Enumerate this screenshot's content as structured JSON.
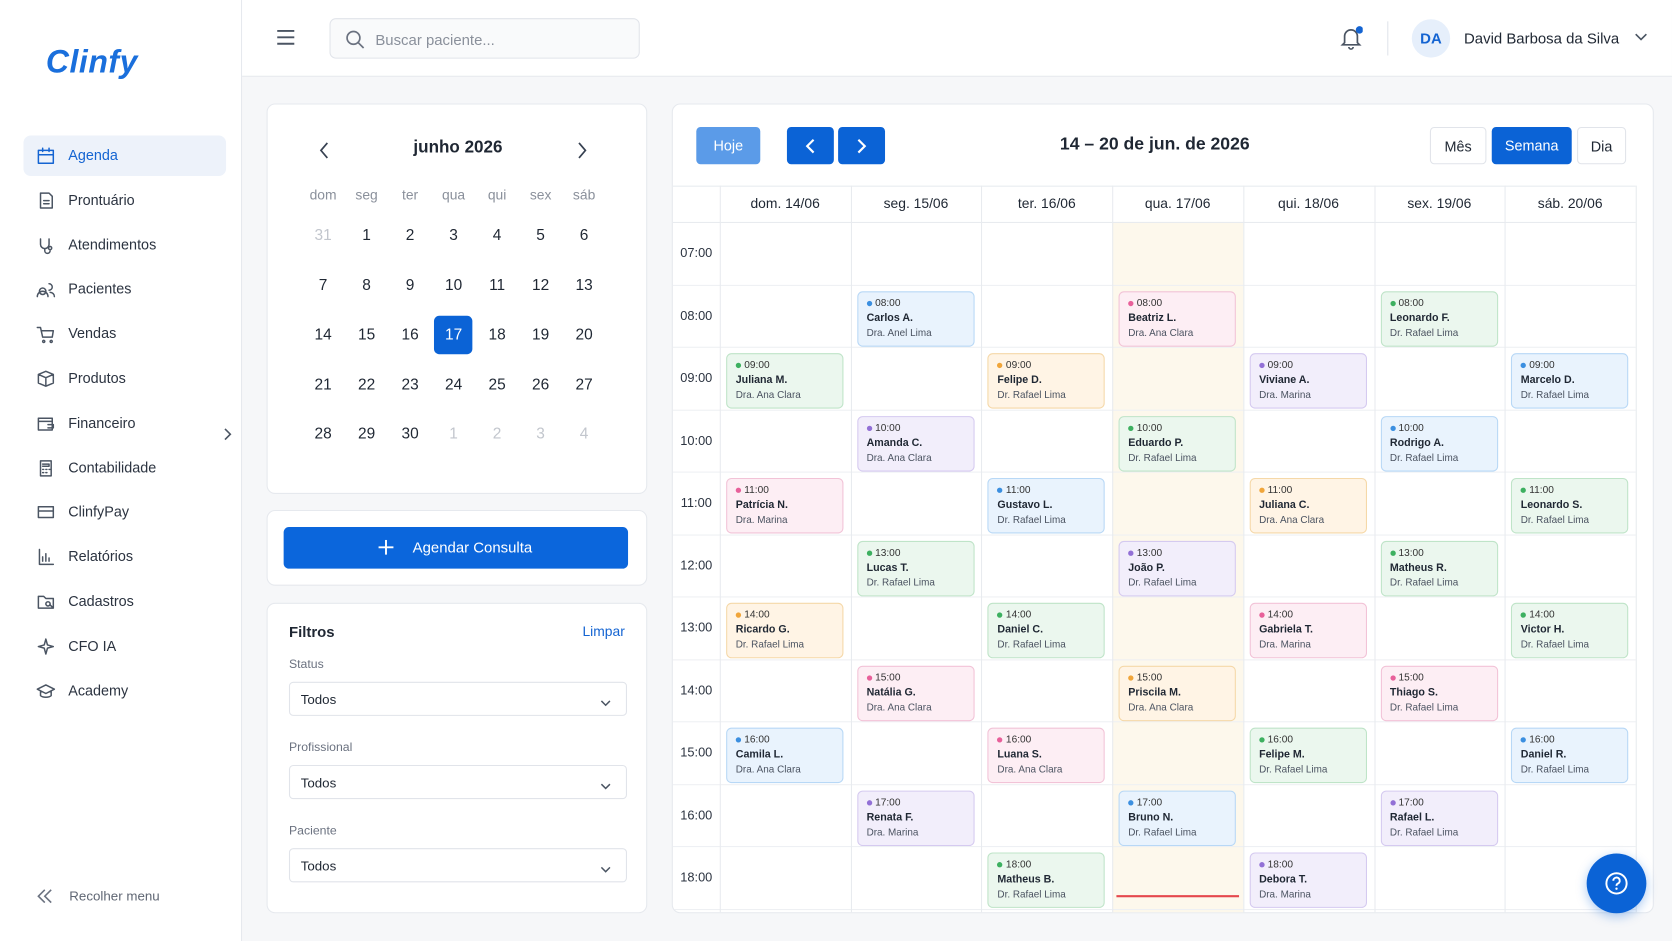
{
  "sidebar": {
    "logo": "Clinfy",
    "items": [
      {
        "label": "Agenda",
        "active": true
      },
      {
        "label": "Prontuário"
      },
      {
        "label": "Atendimentos"
      },
      {
        "label": "Pacientes"
      },
      {
        "label": "Vendas"
      },
      {
        "label": "Produtos"
      },
      {
        "label": "Financeiro",
        "submenu": true
      },
      {
        "label": "Contabilidade"
      },
      {
        "label": "ClinfyPay"
      },
      {
        "label": "Relatórios"
      },
      {
        "label": "Cadastros"
      },
      {
        "label": "CFO IA"
      },
      {
        "label": "Academy"
      }
    ],
    "collapse": "Recolher menu"
  },
  "header": {
    "search_placeholder": "Buscar paciente...",
    "notification_dot": true,
    "user": {
      "initials": "DA",
      "name": "David Barbosa da Silva"
    }
  },
  "mini_calendar": {
    "month": "junho 2026",
    "weekdays": [
      "dom",
      "seg",
      "ter",
      "qua",
      "qui",
      "sex",
      "sáb"
    ],
    "weeks": [
      [
        31,
        1,
        2,
        3,
        4,
        5,
        6
      ],
      [
        7,
        8,
        9,
        10,
        11,
        12,
        13
      ],
      [
        14,
        15,
        16,
        17,
        18,
        19,
        20
      ],
      [
        21,
        22,
        23,
        24,
        25,
        26,
        27
      ],
      [
        28,
        29,
        30,
        1,
        2,
        3,
        4
      ]
    ],
    "selected": 17
  },
  "schedule_button": "Agendar Consulta",
  "filters": {
    "title": "Filtros",
    "clear": "Limpar",
    "fields": [
      {
        "label": "Status",
        "value": "Todos"
      },
      {
        "label": "Profissional",
        "value": "Todos"
      },
      {
        "label": "Paciente",
        "value": "Todos"
      }
    ]
  },
  "calendar": {
    "today_button": "Hoje",
    "range": "14 – 20 de jun. de 2026",
    "views": [
      {
        "label": "Mês"
      },
      {
        "label": "Semana",
        "active": true
      },
      {
        "label": "Dia"
      }
    ],
    "times": [
      "07:00",
      "08:00",
      "09:00",
      "10:00",
      "11:00",
      "12:00",
      "13:00",
      "14:00",
      "15:00",
      "16:00",
      "18:00"
    ],
    "days": [
      {
        "label": "dom. 14/06",
        "appointments": [
          {
            "time": "09:00",
            "patient": "Juliana M.",
            "doctor": "Dra. Ana Clara",
            "color": "green"
          },
          {
            "time": "11:00",
            "patient": "Patrícia N.",
            "doctor": "Dra. Marina",
            "color": "pink"
          },
          {
            "time": "14:00",
            "patient": "Ricardo G.",
            "doctor": "Dr. Rafael Lima",
            "color": "orange"
          },
          {
            "time": "16:00",
            "patient": "Camila L.",
            "doctor": "Dra. Ana Clara",
            "color": "blue"
          }
        ]
      },
      {
        "label": "seg. 15/06",
        "appointments": [
          {
            "time": "08:00",
            "patient": "Carlos A.",
            "doctor": "Dra. Anel Lima",
            "color": "blue"
          },
          {
            "time": "10:00",
            "patient": "Amanda C.",
            "doctor": "Dra. Ana Clara",
            "color": "purple"
          },
          {
            "time": "13:00",
            "patient": "Lucas T.",
            "doctor": "Dr. Rafael Lima",
            "color": "green"
          },
          {
            "time": "15:00",
            "patient": "Natália G.",
            "doctor": "Dra. Ana Clara",
            "color": "pink"
          },
          {
            "time": "17:00",
            "patient": "Renata F.",
            "doctor": "Dra. Marina",
            "color": "purple"
          }
        ]
      },
      {
        "label": "ter. 16/06",
        "appointments": [
          {
            "time": "09:00",
            "patient": "Felipe D.",
            "doctor": "Dr. Rafael Lima",
            "color": "orange"
          },
          {
            "time": "11:00",
            "patient": "Gustavo L.",
            "doctor": "Dr. Rafael Lima",
            "color": "blue"
          },
          {
            "time": "14:00",
            "patient": "Daniel C.",
            "doctor": "Dr. Rafael Lima",
            "color": "green"
          },
          {
            "time": "16:00",
            "patient": "Luana S.",
            "doctor": "Dra. Ana Clara",
            "color": "pink"
          },
          {
            "time": "18:00",
            "patient": "Matheus B.",
            "doctor": "Dr. Rafael Lima",
            "color": "green"
          }
        ]
      },
      {
        "label": "qua. 17/06",
        "today": true,
        "appointments": [
          {
            "time": "08:00",
            "patient": "Beatriz L.",
            "doctor": "Dra. Ana Clara",
            "color": "pink"
          },
          {
            "time": "10:00",
            "patient": "Eduardo P.",
            "doctor": "Dr. Rafael Lima",
            "color": "green"
          },
          {
            "time": "13:00",
            "patient": "João P.",
            "doctor": "Dr. Rafael Lima",
            "color": "purple"
          },
          {
            "time": "15:00",
            "patient": "Priscila M.",
            "doctor": "Dra. Ana Clara",
            "color": "orange"
          },
          {
            "time": "17:00",
            "patient": "Bruno N.",
            "doctor": "Dr. Rafael Lima",
            "color": "blue"
          }
        ]
      },
      {
        "label": "qui. 18/06",
        "appointments": [
          {
            "time": "09:00",
            "patient": "Viviane A.",
            "doctor": "Dra. Marina",
            "color": "purple"
          },
          {
            "time": "11:00",
            "patient": "Juliana C.",
            "doctor": "Dra. Ana Clara",
            "color": "orange"
          },
          {
            "time": "14:00",
            "patient": "Gabriela T.",
            "doctor": "Dra. Marina",
            "color": "pink"
          },
          {
            "time": "16:00",
            "patient": "Felipe M.",
            "doctor": "Dr. Rafael Lima",
            "color": "green"
          },
          {
            "time": "18:00",
            "patient": "Debora T.",
            "doctor": "Dra. Marina",
            "color": "purple"
          }
        ]
      },
      {
        "label": "sex. 19/06",
        "appointments": [
          {
            "time": "08:00",
            "patient": "Leonardo F.",
            "doctor": "Dr. Rafael Lima",
            "color": "green"
          },
          {
            "time": "10:00",
            "patient": "Rodrigo A.",
            "doctor": "Dr. Rafael Lima",
            "color": "blue"
          },
          {
            "time": "13:00",
            "patient": "Matheus R.",
            "doctor": "Dr. Rafael Lima",
            "color": "green"
          },
          {
            "time": "15:00",
            "patient": "Thiago S.",
            "doctor": "Dr. Rafael Lima",
            "color": "pink"
          },
          {
            "time": "17:00",
            "patient": "Rafael L.",
            "doctor": "Dr. Rafael Lima",
            "color": "purple"
          }
        ]
      },
      {
        "label": "sáb. 20/06",
        "appointments": [
          {
            "time": "09:00",
            "patient": "Marcelo D.",
            "doctor": "Dr. Rafael Lima",
            "color": "blue"
          },
          {
            "time": "11:00",
            "patient": "Leonardo S.",
            "doctor": "Dr. Rafael Lima",
            "color": "green"
          },
          {
            "time": "14:00",
            "patient": "Victor H.",
            "doctor": "Dr. Rafael Lima",
            "color": "green"
          },
          {
            "time": "16:00",
            "patient": "Daniel R.",
            "doctor": "Dr. Rafael Lima",
            "color": "blue"
          }
        ]
      }
    ]
  }
}
